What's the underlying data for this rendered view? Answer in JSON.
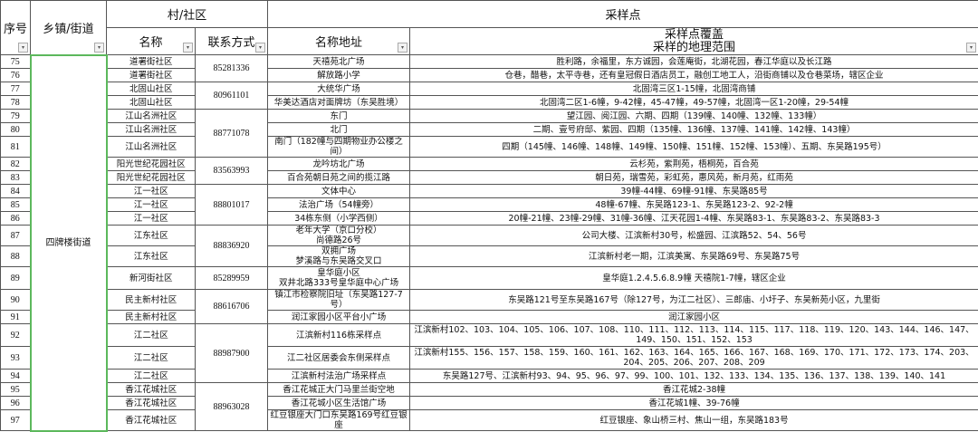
{
  "header": {
    "seq": "序号",
    "town": "乡镇/街道",
    "village_group": "村/社区",
    "village_name": "名称",
    "contact": "联系方式",
    "sampling_group": "采样点",
    "site_name": "名称地址",
    "coverage_line1": "采样点覆盖",
    "coverage_line2": "采样的地理范围",
    "filter_icon": "▾"
  },
  "town": "四牌楼街道",
  "contact_groups": [
    {
      "phone": "85281336",
      "span": 2
    },
    {
      "phone": "80961101",
      "span": 2
    },
    {
      "phone": "88771078",
      "span": 3
    },
    {
      "phone": "83563993",
      "span": 2
    },
    {
      "phone": "88801017",
      "span": 3
    },
    {
      "phone": "88836920",
      "span": 2
    },
    {
      "phone": "85289959",
      "span": 1
    },
    {
      "phone": "88616706",
      "span": 2
    },
    {
      "phone": "88987900",
      "span": 3
    },
    {
      "phone": "88963028",
      "span": 3
    }
  ],
  "rows": [
    {
      "seq": "75",
      "community": "道署街社区",
      "site": "天禧苑北广场",
      "coverage": "胜利路，余福里，东方诚园，会莲庵街，北湖花园，春江华庭以及长江路"
    },
    {
      "seq": "76",
      "community": "道署街社区",
      "site": "解放路小学",
      "coverage": "仓巷，醋巷，太平寺巷，还有皇冠假日酒店员工，融创工地工人，沿街商铺以及仓巷菜场，辖区企业"
    },
    {
      "seq": "77",
      "community": "北固山社区",
      "site": "大统华广场",
      "coverage": "北固湾三区1-15幢，北固湾商铺"
    },
    {
      "seq": "78",
      "community": "北固山社区",
      "site": "华美达酒店对面牌坊（东吴胜境）",
      "coverage": "北固湾二区1-6幢，9-42幢，45-47幢，49-57幢，北固湾一区1-20幢，29-54幢"
    },
    {
      "seq": "79",
      "community": "江山名洲社区",
      "site": "东门",
      "coverage": "望江园、阅江园、六期、四期（139幢、140幢、132幢、133幢）"
    },
    {
      "seq": "80",
      "community": "江山名洲社区",
      "site": "北门",
      "coverage": "二期、壹号府邸、紫园、四期（135幢、136幢、137幢、141幢、142幢、143幢）"
    },
    {
      "seq": "81",
      "community": "江山名洲社区",
      "site": "南门（182幢与四期物业办公楼之间）",
      "coverage": "四期（145幢、146幢、148幢、149幢、150幢、151幢、152幢、153幢）、五期、东吴路195号）"
    },
    {
      "seq": "82",
      "community": "阳光世纪花园社区",
      "site": "龙吟坊北广场",
      "coverage": "云杉苑，紫荆苑，梧桐苑，百合苑"
    },
    {
      "seq": "83",
      "community": "阳光世纪花园社区",
      "site": "百合苑朝日苑之间的揽江路",
      "coverage": "朝日苑，瑞雪苑，彩虹苑，惠风苑，新月苑，红雨苑"
    },
    {
      "seq": "84",
      "community": "江一社区",
      "site": "文体中心",
      "coverage": "39幢-44幢、69幢-91幢、东吴路85号"
    },
    {
      "seq": "85",
      "community": "江一社区",
      "site": "法治广场（54幢旁）",
      "coverage": "48幢-67幢、东吴路123-1、东吴路123-2、92-2幢"
    },
    {
      "seq": "86",
      "community": "江一社区",
      "site": "34栋东侧（小学西侧）",
      "coverage": "20幢-21幢、23幢-29幢、31幢-36幢、江天花园1-4幢、东吴路83-1、东吴路83-2、东吴路83-3"
    },
    {
      "seq": "87",
      "community": "江东社区",
      "site": "老年大学（京口分校）\n尚德路26号",
      "coverage": "公司大楼、江滨新村30号，松盛园、江滨路52、54、56号"
    },
    {
      "seq": "88",
      "community": "江东社区",
      "site": "双拥广场\n梦溪路与东吴路交叉口",
      "coverage": "江滨新村老一期，江滨美寓、东吴路69号、东吴路75号"
    },
    {
      "seq": "89",
      "community": "新河街社区",
      "site": "皇华庭小区\n双井北路333号皇华庭中心广场",
      "coverage": "皇华庭1.2.4.5.6.8.9幢 天禧院1-7幢，辖区企业"
    },
    {
      "seq": "90",
      "community": "民主新村社区",
      "site": "镇江市检察院旧址（东吴路127-7号）",
      "coverage": "东吴路121号至东吴路167号（除127号，为江二社区）、三郎庙、小圩子、东吴新苑小区，九里街"
    },
    {
      "seq": "91",
      "community": "民主新村社区",
      "site": "润江家园小区平台小广场",
      "coverage": "润江家园小区"
    },
    {
      "seq": "92",
      "community": "江二社区",
      "site": "江滨新村116栋采样点",
      "coverage": "江滨新村102、103、104、105、106、107、108、110、111、112、113、114、115、117、118、119、120、143、144、146、147、149、150、151、152、153"
    },
    {
      "seq": "93",
      "community": "江二社区",
      "site": "江二社区居委会东侧采样点",
      "coverage": "江滨新村155、156、157、158、159、160、161、162、163、164、165、166、167、168、169、170、171、172、173、174、203、204、205、206、207、208、209"
    },
    {
      "seq": "94",
      "community": "江二社区",
      "site": "江滨新村法治广场采样点",
      "coverage": "东吴路127号、江滨新村93、94、95、96、97、99、100、101、132、133、134、135、136、137、138、139、140、141"
    },
    {
      "seq": "95",
      "community": "香江花城社区",
      "site": "香江花城正大门马里兰街空地",
      "coverage": "香江花城2-38幢"
    },
    {
      "seq": "96",
      "community": "香江花城社区",
      "site": "香江花城小区生活馆广场",
      "coverage": "香江花城1幢、39-76幢"
    },
    {
      "seq": "97",
      "community": "香江花城社区",
      "site": "红豆银座大门口东吴路169号红豆银座",
      "coverage": "红豆银座、象山桥三村、焦山一组，东吴路183号"
    }
  ]
}
